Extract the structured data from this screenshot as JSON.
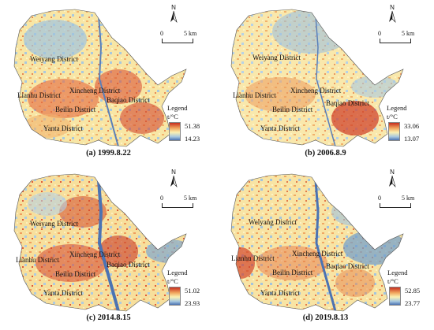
{
  "panels": [
    {
      "caption": "(a) 1999.8.22",
      "legend": {
        "title": "Legend",
        "unit": "t/°C",
        "max": "51.38",
        "min": "14.23"
      },
      "north_letter": "N",
      "scale": {
        "zero": "0",
        "label": "5 km"
      },
      "districts": {
        "weiyang": "Weiyang District",
        "lianhu": "Lianhu District",
        "xincheng": "Xincheng District",
        "beilin": "Beilin District",
        "baqiao": "Baqiao District",
        "yanta": "Yanta District"
      }
    },
    {
      "caption": "(b) 2006.8.9",
      "legend": {
        "title": "Legend",
        "unit": "t/°C",
        "max": "33.06",
        "min": "13.07"
      },
      "north_letter": "N",
      "scale": {
        "zero": "0",
        "label": "5 km"
      },
      "districts": {
        "weiyang": "Weiyang District",
        "lianhu": "Lianhu District",
        "xincheng": "Xincheng District",
        "beilin": "Beilin District",
        "baqiao": "Baqiao District",
        "yanta": "Yanta District"
      }
    },
    {
      "caption": "(c) 2014.8.15",
      "legend": {
        "title": "Legend",
        "unit": "t/°C",
        "max": "51.02",
        "min": "23.93"
      },
      "north_letter": "N",
      "scale": {
        "zero": "0",
        "label": "5 km"
      },
      "districts": {
        "weiyang": "Weiyang District",
        "lianhu": "Lianhu District",
        "xincheng": "Xincheng District",
        "beilin": "Beilin District",
        "baqiao": "Baqiao District",
        "yanta": "Yanta District"
      }
    },
    {
      "caption": "(d) 2019.8.13",
      "legend": {
        "title": "Legend",
        "unit": "t/°C",
        "max": "52.85",
        "min": "23.77"
      },
      "north_letter": "N",
      "scale": {
        "zero": "0",
        "label": "5 km"
      },
      "districts": {
        "weiyang": "Weiyang District",
        "lianhu": "Lianhu District",
        "xincheng": "Xincheng District",
        "beilin": "Beilin District",
        "baqiao": "Baqiao District",
        "yanta": "Yanta District"
      }
    }
  ],
  "colors": {
    "hot": "#c62d1f",
    "warm": "#f0a35c",
    "mid": "#fbf0b2",
    "cool": "#a7c8e0",
    "cold": "#4b73b3",
    "river": "#5a7fb8"
  }
}
